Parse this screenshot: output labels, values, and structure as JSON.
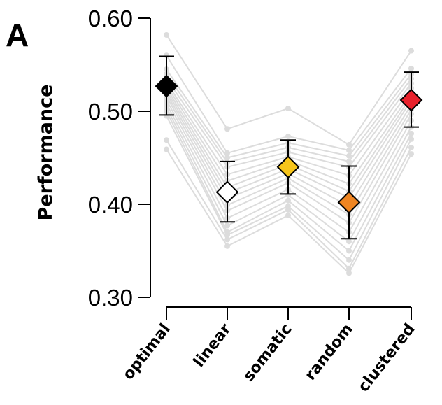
{
  "panel_label": "A",
  "chart_data": {
    "type": "line",
    "title": "",
    "ylabel": "Performance",
    "xlabel": "",
    "categories": [
      "optimal",
      "linear",
      "somatic",
      "random",
      "clustered"
    ],
    "ylim": [
      0.3,
      0.6
    ],
    "yticks": [
      0.3,
      0.4,
      0.5,
      0.6
    ],
    "ytick_labels": [
      "0.30",
      "0.40",
      "0.50",
      "0.60"
    ],
    "grid": false,
    "legend": "none",
    "summary": {
      "mean": [
        0.527,
        0.413,
        0.44,
        0.402,
        0.512
      ],
      "err_low": [
        0.496,
        0.381,
        0.411,
        0.363,
        0.483
      ],
      "err_high": [
        0.559,
        0.446,
        0.469,
        0.441,
        0.542
      ],
      "colors": [
        "#000000",
        "#ffffff",
        "#f7c51a",
        "#ef8522",
        "#e8212c"
      ]
    },
    "individual_series_color": "#dcdcdc",
    "individual_series": [
      [
        0.582,
        0.481,
        0.503,
        0.464,
        0.565
      ],
      [
        0.56,
        0.455,
        0.473,
        0.458,
        0.546
      ],
      [
        0.545,
        0.45,
        0.466,
        0.452,
        0.54
      ],
      [
        0.54,
        0.445,
        0.461,
        0.446,
        0.535
      ],
      [
        0.535,
        0.44,
        0.456,
        0.44,
        0.53
      ],
      [
        0.531,
        0.432,
        0.451,
        0.431,
        0.525
      ],
      [
        0.528,
        0.425,
        0.447,
        0.422,
        0.52
      ],
      [
        0.525,
        0.418,
        0.443,
        0.414,
        0.516
      ],
      [
        0.522,
        0.412,
        0.438,
        0.407,
        0.512
      ],
      [
        0.519,
        0.406,
        0.433,
        0.398,
        0.507
      ],
      [
        0.516,
        0.399,
        0.428,
        0.389,
        0.502
      ],
      [
        0.512,
        0.393,
        0.423,
        0.38,
        0.497
      ],
      [
        0.508,
        0.385,
        0.416,
        0.37,
        0.49
      ],
      [
        0.504,
        0.377,
        0.41,
        0.36,
        0.483
      ],
      [
        0.5,
        0.37,
        0.404,
        0.35,
        0.476
      ],
      [
        0.495,
        0.367,
        0.398,
        0.34,
        0.47
      ],
      [
        0.469,
        0.362,
        0.394,
        0.331,
        0.461
      ],
      [
        0.459,
        0.355,
        0.388,
        0.326,
        0.454
      ]
    ]
  }
}
